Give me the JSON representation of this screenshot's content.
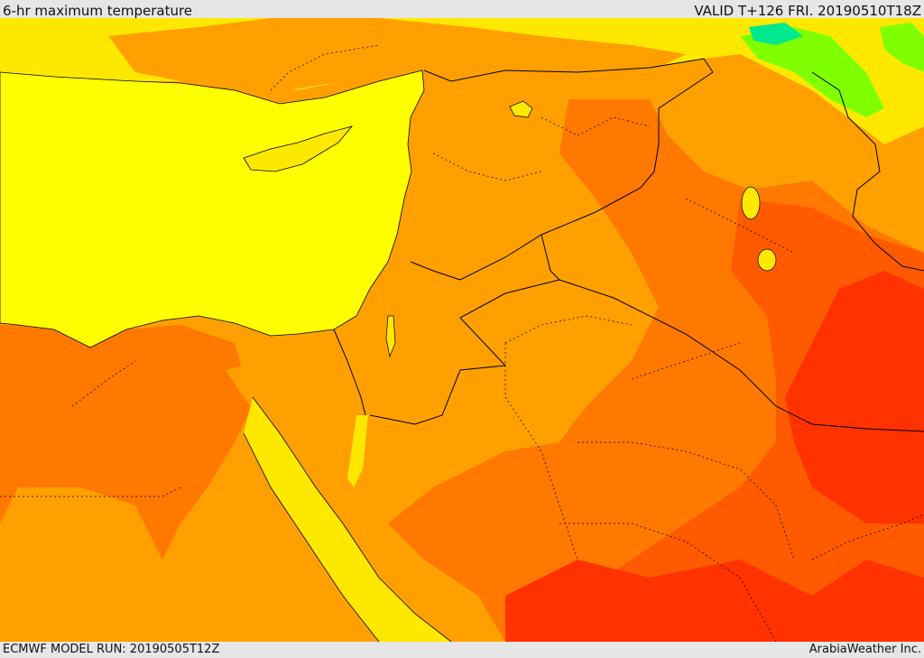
{
  "header": {
    "title": "6-hr maximum temperature",
    "valid": "VALID T+126 FRI. 20190510T18Z"
  },
  "footer": {
    "model_run": "ECMWF MODEL RUN: 20190505T12Z",
    "credit": "ArabiaWeather Inc."
  },
  "map": {
    "colors": {
      "sea": "#ffff00",
      "warm": "#ffa000",
      "hot": "#ff7800",
      "hotter": "#ff5a00",
      "hottest": "#ff3200",
      "cool_yellow": "#ffe800",
      "green": "#80ff00",
      "cyan_green": "#00e890",
      "border": "#000000"
    }
  }
}
